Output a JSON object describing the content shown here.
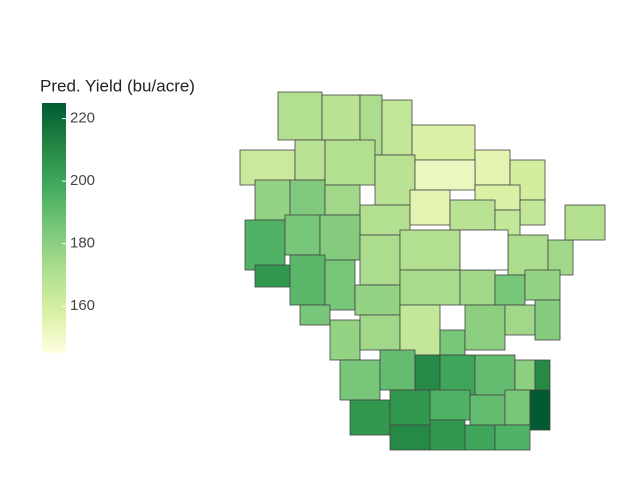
{
  "chart_data": {
    "type": "choropleth",
    "legend_title": "Pred. Yield (bu/acre)",
    "colorlim": [
      145,
      225
    ],
    "colorticks": [
      160,
      180,
      200,
      220
    ],
    "colorscale": [
      "#ffffe0",
      "#d9f0a3",
      "#addd8e",
      "#78c679",
      "#41ab5d",
      "#238443",
      "#005a32"
    ],
    "missing_color": "#ffffff",
    "values": [
      170,
      168,
      172,
      165,
      158,
      155,
      160,
      163,
      168,
      170,
      168,
      152,
      158,
      165,
      178,
      183,
      175,
      170,
      155,
      168,
      165,
      195,
      185,
      182,
      172,
      170,
      172,
      175,
      170,
      205,
      192,
      185,
      178,
      173,
      175,
      185,
      178,
      185,
      178,
      175,
      165,
      185,
      180,
      175,
      182,
      185,
      190,
      210,
      200,
      190,
      180,
      210,
      205,
      205,
      195,
      190,
      185,
      225,
      210,
      205,
      200,
      195,
      null
    ]
  }
}
